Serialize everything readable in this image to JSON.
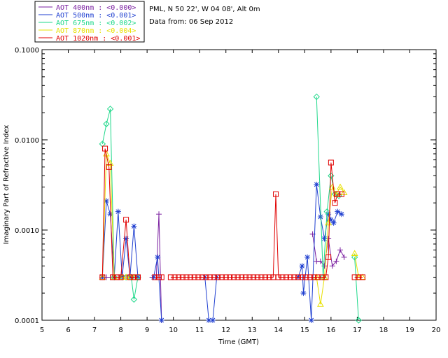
{
  "header": {
    "location": "PML, N 50 22', W 04 08', Alt 0m",
    "date": "Data from: 06 Sep 2012"
  },
  "chart_data": {
    "type": "line",
    "xlabel": "Time (GMT)",
    "ylabel": "Imaginary Part of Refractive Index",
    "xlim": [
      5,
      20
    ],
    "ylim": [
      0.0001,
      0.1
    ],
    "yscale": "log",
    "x_ticks": [
      "5",
      "6",
      "7",
      "8",
      "9",
      "10",
      "11",
      "12",
      "13",
      "14",
      "15",
      "16",
      "17",
      "18",
      "19",
      "20"
    ],
    "y_ticks": [
      "0.0001",
      "0.0010",
      "0.0100",
      "0.1000"
    ],
    "legend": [
      {
        "name": "AOT  400nm : <0.000>",
        "color": "#7a1fa0"
      },
      {
        "name": "AOT  500nm : <0.001>",
        "color": "#1f3fd0"
      },
      {
        "name": "AOT  675nm : <0.002>",
        "color": "#1ed88a"
      },
      {
        "name": "AOT  870nm : <0.004>",
        "color": "#e8e000"
      },
      {
        "name": "AOT 1020nm : <0.001>",
        "color": "#e00000"
      }
    ],
    "series": [
      {
        "name": "AOT 400nm",
        "color": "#7a1fa0",
        "marker": "plus",
        "segments": [
          [
            [
              7.3,
              0.0003
            ],
            [
              7.45,
              0.0003
            ],
            [
              7.6,
              0.0003
            ],
            [
              7.75,
              0.0003
            ],
            [
              7.9,
              0.0003
            ],
            [
              8.05,
              0.0003
            ],
            [
              8.2,
              0.0003
            ],
            [
              8.35,
              0.0003
            ],
            [
              8.5,
              0.0003
            ],
            [
              8.65,
              0.0003
            ]
          ],
          [
            [
              9.2,
              0.0003
            ],
            [
              9.35,
              0.0003
            ],
            [
              9.45,
              0.0015
            ],
            [
              9.55,
              0.0001
            ]
          ],
          [
            [
              15.3,
              0.0009
            ],
            [
              15.45,
              0.00045
            ],
            [
              15.6,
              0.00045
            ],
            [
              15.75,
              0.0004
            ],
            [
              15.9,
              0.0008
            ],
            [
              16.05,
              0.0004
            ],
            [
              16.2,
              0.00045
            ],
            [
              16.35,
              0.0006
            ],
            [
              16.5,
              0.0005
            ]
          ]
        ]
      },
      {
        "name": "AOT 500nm",
        "color": "#1f3fd0",
        "marker": "asterisk",
        "segments": [
          [
            [
              7.3,
              0.0003
            ],
            [
              7.45,
              0.0021
            ],
            [
              7.6,
              0.0015
            ],
            [
              7.75,
              0.0003
            ],
            [
              7.9,
              0.0016
            ],
            [
              8.05,
              0.0003
            ],
            [
              8.2,
              0.0008
            ],
            [
              8.35,
              0.0003
            ],
            [
              8.5,
              0.0011
            ],
            [
              8.65,
              0.0003
            ]
          ],
          [
            [
              9.25,
              0.0003
            ],
            [
              9.4,
              0.0005
            ],
            [
              9.55,
              0.0001
            ]
          ],
          [
            [
              11.2,
              0.0003
            ],
            [
              11.35,
              0.0001
            ]
          ],
          [
            [
              11.5,
              0.0001
            ],
            [
              11.65,
              0.0003
            ]
          ],
          [
            [
              14.75,
              0.0003
            ],
            [
              14.9,
              0.0004
            ],
            [
              14.95,
              0.0002
            ],
            [
              15.1,
              0.0005
            ],
            [
              15.25,
              0.0001
            ],
            [
              15.45,
              0.0032
            ],
            [
              15.6,
              0.0014
            ],
            [
              15.75,
              0.0008
            ],
            [
              15.9,
              0.0015
            ],
            [
              16.0,
              0.0013
            ],
            [
              16.1,
              0.0012
            ],
            [
              16.25,
              0.0016
            ],
            [
              16.4,
              0.0015
            ]
          ]
        ]
      },
      {
        "name": "AOT 675nm",
        "color": "#1ed88a",
        "marker": "diamond",
        "segments": [
          [
            [
              7.3,
              0.009
            ],
            [
              7.45,
              0.015
            ],
            [
              7.6,
              0.022
            ],
            [
              7.75,
              0.0003
            ],
            [
              8.05,
              0.0003
            ],
            [
              8.2,
              0.0003
            ],
            [
              8.4,
              0.0003
            ],
            [
              8.5,
              0.00017
            ],
            [
              8.65,
              0.0003
            ]
          ],
          [
            [
              15.45,
              0.03
            ],
            [
              15.7,
              0.0003
            ],
            [
              15.85,
              0.0016
            ],
            [
              16.0,
              0.004
            ],
            [
              16.15,
              0.0025
            ],
            [
              16.3,
              0.0024
            ]
          ],
          [
            [
              16.9,
              0.0005
            ],
            [
              17.05,
              0.0001
            ]
          ]
        ]
      },
      {
        "name": "AOT 870nm",
        "color": "#e8e000",
        "marker": "triangle",
        "segments": [
          [
            [
              7.3,
              0.0003
            ],
            [
              7.45,
              0.007
            ],
            [
              7.6,
              0.0055
            ],
            [
              7.75,
              0.0003
            ],
            [
              8.05,
              0.0003
            ],
            [
              8.2,
              0.0003
            ],
            [
              8.35,
              0.0003
            ],
            [
              8.5,
              0.0003
            ]
          ],
          [
            [
              15.45,
              0.0003
            ],
            [
              15.6,
              0.00015
            ],
            [
              15.75,
              0.0003
            ],
            [
              15.9,
              0.0012
            ],
            [
              16.05,
              0.003
            ],
            [
              16.2,
              0.0025
            ],
            [
              16.35,
              0.003
            ],
            [
              16.5,
              0.0026
            ]
          ],
          [
            [
              16.9,
              0.00055
            ],
            [
              17.05,
              0.0003
            ],
            [
              17.2,
              0.0003
            ]
          ]
        ]
      },
      {
        "name": "AOT 1020nm",
        "color": "#e00000",
        "marker": "square",
        "segments": [
          [
            [
              7.3,
              0.0003
            ],
            [
              7.4,
              0.008
            ],
            [
              7.55,
              0.005
            ],
            [
              7.7,
              0.0003
            ],
            [
              7.85,
              0.0003
            ],
            [
              8.0,
              0.0003
            ],
            [
              8.2,
              0.0013
            ],
            [
              8.35,
              0.0003
            ],
            [
              8.5,
              0.0003
            ],
            [
              8.65,
              0.0003
            ]
          ],
          [
            [
              9.3,
              0.0003
            ],
            [
              9.45,
              0.0003
            ],
            [
              9.55,
              0.0003
            ]
          ],
          [
            [
              9.9,
              0.0003
            ],
            [
              10.05,
              0.0003
            ],
            [
              10.2,
              0.0003
            ],
            [
              10.35,
              0.0003
            ],
            [
              10.5,
              0.0003
            ],
            [
              10.65,
              0.0003
            ],
            [
              10.8,
              0.0003
            ],
            [
              10.95,
              0.0003
            ],
            [
              11.1,
              0.0003
            ],
            [
              11.25,
              0.0003
            ],
            [
              11.4,
              0.0003
            ],
            [
              11.55,
              0.0003
            ],
            [
              11.7,
              0.0003
            ],
            [
              11.85,
              0.0003
            ],
            [
              12.0,
              0.0003
            ],
            [
              12.15,
              0.0003
            ],
            [
              12.3,
              0.0003
            ],
            [
              12.45,
              0.0003
            ],
            [
              12.6,
              0.0003
            ],
            [
              12.75,
              0.0003
            ],
            [
              12.9,
              0.0003
            ],
            [
              13.05,
              0.0003
            ],
            [
              13.2,
              0.0003
            ],
            [
              13.35,
              0.0003
            ],
            [
              13.5,
              0.0003
            ],
            [
              13.65,
              0.0003
            ],
            [
              13.8,
              0.0003
            ],
            [
              13.9,
              0.0025
            ],
            [
              14.0,
              0.0003
            ],
            [
              14.15,
              0.0003
            ],
            [
              14.3,
              0.0003
            ],
            [
              14.45,
              0.0003
            ],
            [
              14.6,
              0.0003
            ],
            [
              14.75,
              0.0003
            ],
            [
              14.9,
              0.0003
            ],
            [
              15.05,
              0.0003
            ],
            [
              15.2,
              0.0003
            ],
            [
              15.35,
              0.0003
            ],
            [
              15.5,
              0.0003
            ],
            [
              15.65,
              0.0003
            ],
            [
              15.8,
              0.0003
            ],
            [
              15.9,
              0.0005
            ],
            [
              16.0,
              0.0056
            ],
            [
              16.15,
              0.002
            ],
            [
              16.25,
              0.0025
            ],
            [
              16.4,
              0.0025
            ]
          ],
          [
            [
              16.9,
              0.0003
            ],
            [
              17.05,
              0.0003
            ],
            [
              17.2,
              0.0003
            ]
          ]
        ]
      }
    ]
  }
}
